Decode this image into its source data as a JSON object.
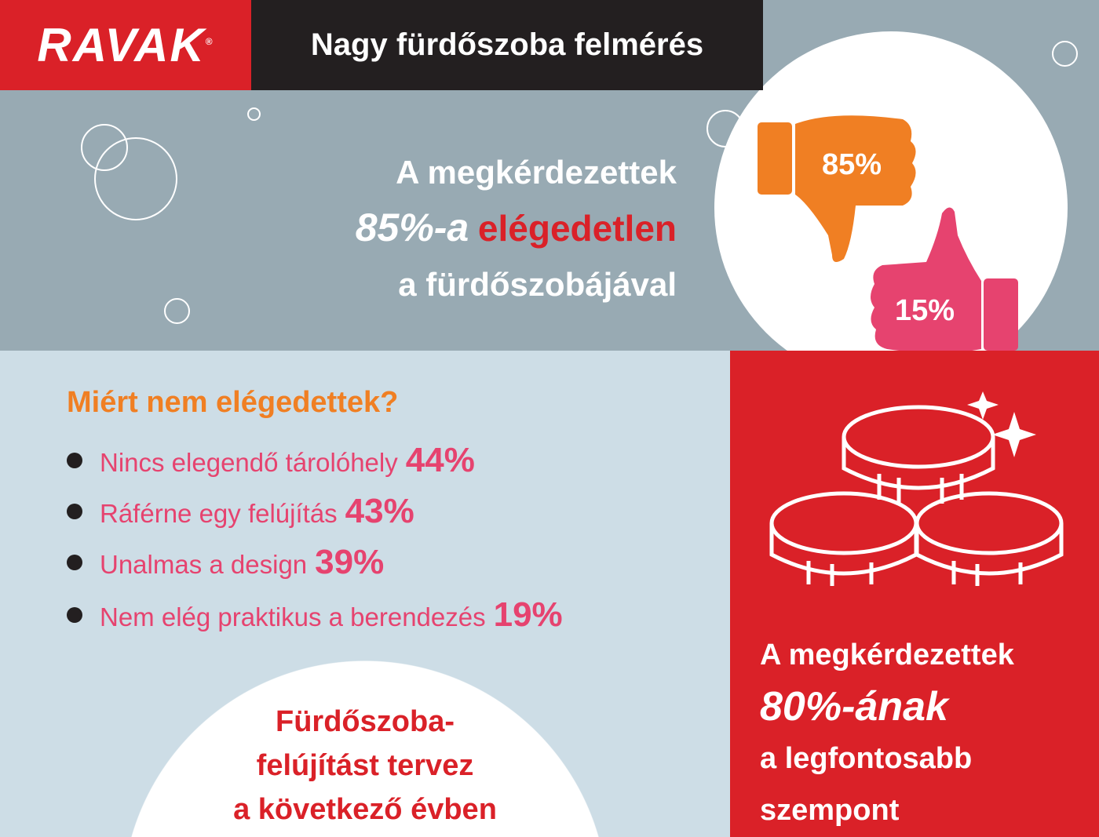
{
  "header": {
    "brand": "RAVAK",
    "registered": "®",
    "title": "Nagy fürdőszoba felmérés"
  },
  "headline": {
    "line1": "A megkérdezettek",
    "percent": "85%-a",
    "highlight": "elégedetlen",
    "line3": "a fürdőszobájával"
  },
  "thumbs": {
    "down_value": "85%",
    "up_value": "15%",
    "down_color": "#f07f23",
    "up_color": "#e6436f"
  },
  "reasons": {
    "heading": "Miért nem elégedettek?",
    "items": [
      {
        "label": "Nincs elegendő tárolóhely",
        "value": "44%"
      },
      {
        "label": "Ráférne egy felújítás",
        "value": "43%"
      },
      {
        "label": "Unalmas a design",
        "value": "39%"
      },
      {
        "label": "Nem elég praktikus a berendezés",
        "value": "19%"
      }
    ]
  },
  "plan": {
    "line1": "Fürdőszoba-",
    "line2": "felújítást tervez",
    "line3": "a következő évben"
  },
  "money": {
    "line1": "A megkérdezettek",
    "percent": "80%-ának",
    "line3": "a legfontosabb",
    "line4": "szempont"
  },
  "colors": {
    "brand_red": "#da2128",
    "gray": "#98aab3",
    "light_blue": "#cddde6",
    "orange": "#f07f23",
    "pink": "#e6436f"
  }
}
